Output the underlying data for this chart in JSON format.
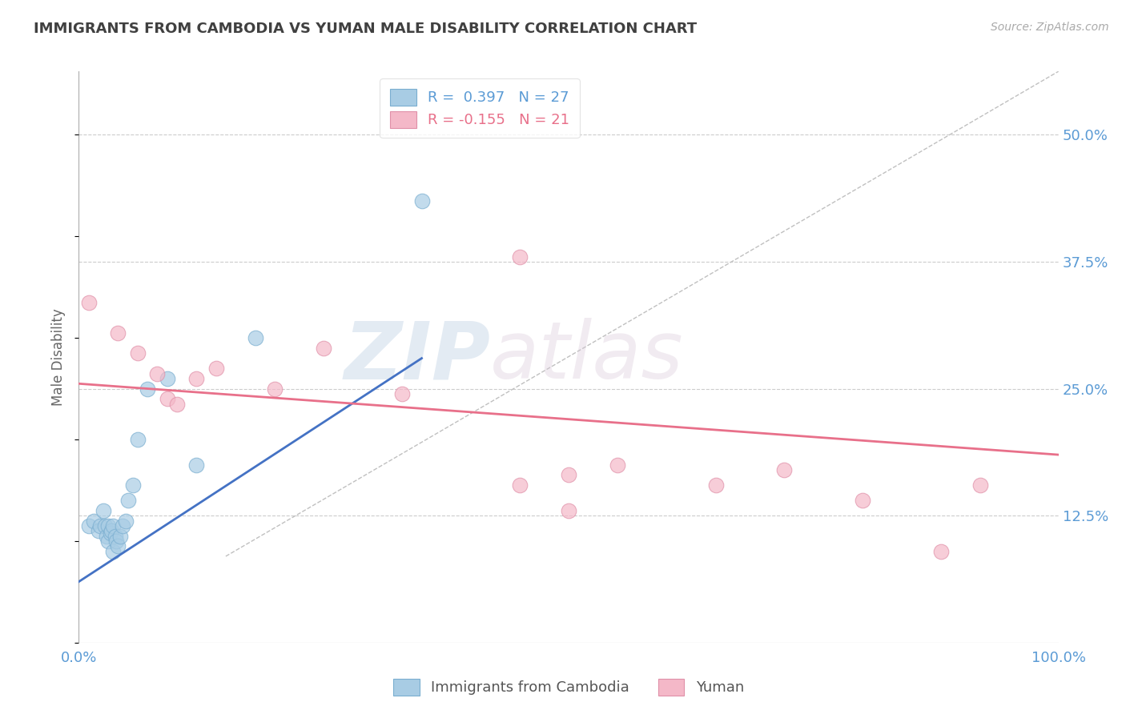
{
  "title": "IMMIGRANTS FROM CAMBODIA VS YUMAN MALE DISABILITY CORRELATION CHART",
  "source_text": "Source: ZipAtlas.com",
  "ylabel": "Male Disability",
  "legend_label1": "Immigrants from Cambodia",
  "legend_label2": "Yuman",
  "R1": 0.397,
  "N1": 27,
  "R2": -0.155,
  "N2": 21,
  "xlim": [
    0.0,
    1.0
  ],
  "ylim": [
    0.0,
    0.5625
  ],
  "yticks": [
    0.125,
    0.25,
    0.375,
    0.5
  ],
  "ytick_labels": [
    "12.5%",
    "25.0%",
    "37.5%",
    "50.0%"
  ],
  "xticks": [
    0.0,
    1.0
  ],
  "xtick_labels": [
    "0.0%",
    "100.0%"
  ],
  "color_blue": "#a8cce4",
  "color_pink": "#f4b8c8",
  "color_trendline_blue": "#4472c4",
  "color_trendline_pink": "#e8708a",
  "color_refline": "#c0c0c0",
  "color_axis_labels": "#5b9bd5",
  "color_title": "#404040",
  "watermark_zip": "ZIP",
  "watermark_atlas": "atlas",
  "blue_points_x": [
    0.01,
    0.015,
    0.02,
    0.022,
    0.025,
    0.027,
    0.028,
    0.03,
    0.03,
    0.032,
    0.033,
    0.035,
    0.035,
    0.037,
    0.038,
    0.04,
    0.042,
    0.045,
    0.048,
    0.05,
    0.055,
    0.06,
    0.07,
    0.09,
    0.12,
    0.18,
    0.35
  ],
  "blue_points_y": [
    0.115,
    0.12,
    0.11,
    0.115,
    0.13,
    0.115,
    0.105,
    0.1,
    0.115,
    0.108,
    0.11,
    0.09,
    0.115,
    0.105,
    0.1,
    0.095,
    0.105,
    0.115,
    0.12,
    0.14,
    0.155,
    0.2,
    0.25,
    0.26,
    0.175,
    0.3,
    0.435
  ],
  "pink_points_x": [
    0.01,
    0.04,
    0.06,
    0.08,
    0.09,
    0.1,
    0.12,
    0.14,
    0.2,
    0.25,
    0.33,
    0.45,
    0.5,
    0.55,
    0.65,
    0.72,
    0.8,
    0.88,
    0.92,
    0.45,
    0.5
  ],
  "pink_points_y": [
    0.335,
    0.305,
    0.285,
    0.265,
    0.24,
    0.235,
    0.26,
    0.27,
    0.25,
    0.29,
    0.245,
    0.155,
    0.165,
    0.175,
    0.155,
    0.17,
    0.14,
    0.09,
    0.155,
    0.38,
    0.13
  ],
  "blue_trend_x": [
    0.0,
    0.35
  ],
  "blue_trend_y": [
    0.06,
    0.28
  ],
  "pink_trend_x": [
    0.0,
    1.0
  ],
  "pink_trend_y": [
    0.255,
    0.185
  ],
  "ref_line_x": [
    0.15,
    1.0
  ],
  "ref_line_y": [
    0.085,
    0.5625
  ]
}
